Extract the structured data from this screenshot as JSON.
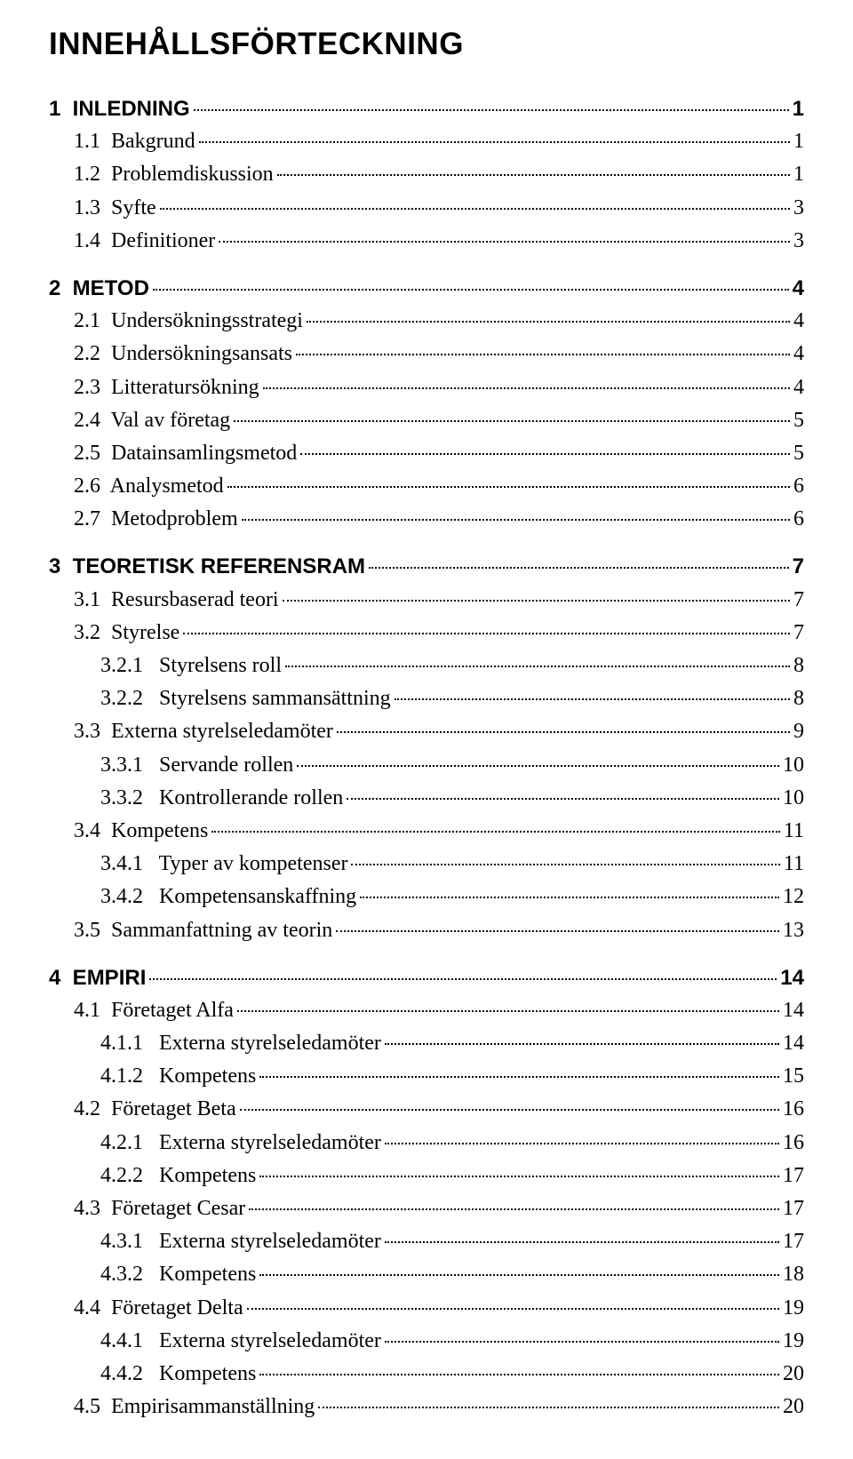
{
  "title": "INNEHÅLLSFÖRTECKNING",
  "toc": {
    "blocks": [
      [
        {
          "level": "chapter",
          "num": "1",
          "text": "INLEDNING",
          "page": "1"
        },
        {
          "level": "l1",
          "num": "1.1",
          "text": "Bakgrund",
          "page": "1"
        },
        {
          "level": "l1",
          "num": "1.2",
          "text": "Problemdiskussion",
          "page": "1"
        },
        {
          "level": "l1",
          "num": "1.3",
          "text": "Syfte",
          "page": "3"
        },
        {
          "level": "l1",
          "num": "1.4",
          "text": "Definitioner",
          "page": "3"
        }
      ],
      [
        {
          "level": "chapter",
          "num": "2",
          "text": "METOD",
          "page": "4"
        },
        {
          "level": "l1",
          "num": "2.1",
          "text": "Undersökningsstrategi",
          "page": "4"
        },
        {
          "level": "l1",
          "num": "2.2",
          "text": "Undersökningsansats",
          "page": "4"
        },
        {
          "level": "l1",
          "num": "2.3",
          "text": "Litteratursökning",
          "page": "4"
        },
        {
          "level": "l1",
          "num": "2.4",
          "text": "Val av företag",
          "page": "5"
        },
        {
          "level": "l1",
          "num": "2.5",
          "text": "Datainsamlingsmetod",
          "page": "5"
        },
        {
          "level": "l1",
          "num": "2.6",
          "text": "Analysmetod",
          "page": "6"
        },
        {
          "level": "l1",
          "num": "2.7",
          "text": "Metodproblem",
          "page": "6"
        }
      ],
      [
        {
          "level": "chapter",
          "num": "3",
          "text": "TEORETISK REFERENSRAM",
          "page": "7"
        },
        {
          "level": "l1",
          "num": "3.1",
          "text": "Resursbaserad teori",
          "page": "7"
        },
        {
          "level": "l1",
          "num": "3.2",
          "text": "Styrelse",
          "page": "7"
        },
        {
          "level": "l2",
          "num": "3.2.1",
          "text": "Styrelsens roll",
          "page": "8"
        },
        {
          "level": "l2",
          "num": "3.2.2",
          "text": "Styrelsens sammansättning",
          "page": "8"
        },
        {
          "level": "l1",
          "num": "3.3",
          "text": "Externa styrelseledamöter",
          "page": "9"
        },
        {
          "level": "l2",
          "num": "3.3.1",
          "text": "Servande rollen",
          "page": "10"
        },
        {
          "level": "l2",
          "num": "3.3.2",
          "text": "Kontrollerande rollen",
          "page": "10"
        },
        {
          "level": "l1",
          "num": "3.4",
          "text": "Kompetens",
          "page": "11"
        },
        {
          "level": "l2",
          "num": "3.4.1",
          "text": "Typer av kompetenser",
          "page": "11"
        },
        {
          "level": "l2",
          "num": "3.4.2",
          "text": "Kompetensanskaffning",
          "page": "12"
        },
        {
          "level": "l1",
          "num": "3.5",
          "text": "Sammanfattning av teorin",
          "page": "13"
        }
      ],
      [
        {
          "level": "chapter",
          "num": "4",
          "text": "EMPIRI",
          "page": "14"
        },
        {
          "level": "l1",
          "num": "4.1",
          "text": "Företaget Alfa",
          "page": "14"
        },
        {
          "level": "l2",
          "num": "4.1.1",
          "text": "Externa styrelseledamöter",
          "page": "14"
        },
        {
          "level": "l2",
          "num": "4.1.2",
          "text": "Kompetens",
          "page": "15"
        },
        {
          "level": "l1",
          "num": "4.2",
          "text": "Företaget Beta",
          "page": "16"
        },
        {
          "level": "l2",
          "num": "4.2.1",
          "text": "Externa styrelseledamöter",
          "page": "16"
        },
        {
          "level": "l2",
          "num": "4.2.2",
          "text": "Kompetens",
          "page": "17"
        },
        {
          "level": "l1",
          "num": "4.3",
          "text": "Företaget Cesar",
          "page": "17"
        },
        {
          "level": "l2",
          "num": "4.3.1",
          "text": "Externa styrelseledamöter",
          "page": "17"
        },
        {
          "level": "l2",
          "num": "4.3.2",
          "text": "Kompetens",
          "page": "18"
        },
        {
          "level": "l1",
          "num": "4.4",
          "text": "Företaget Delta",
          "page": "19"
        },
        {
          "level": "l2",
          "num": "4.4.1",
          "text": "Externa styrelseledamöter",
          "page": "19"
        },
        {
          "level": "l2",
          "num": "4.4.2",
          "text": "Kompetens",
          "page": "20"
        },
        {
          "level": "l1",
          "num": "4.5",
          "text": "Empirisammanställning",
          "page": "20"
        }
      ]
    ]
  }
}
